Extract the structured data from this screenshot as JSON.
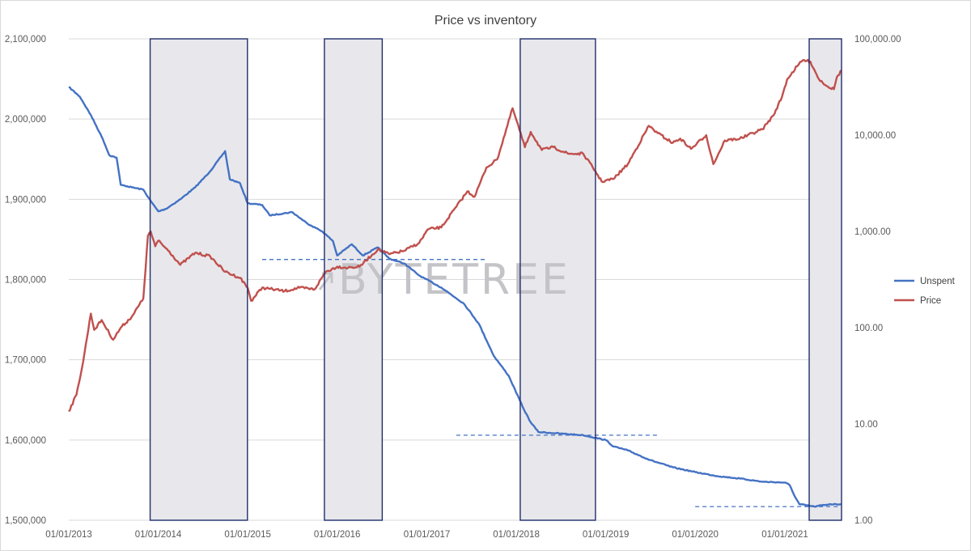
{
  "chart_data": {
    "type": "line",
    "title": "Price vs inventory",
    "x_range": [
      "2013-01-01",
      "2021-08-20"
    ],
    "x_ticks": [
      "01/01/2013",
      "01/01/2014",
      "01/01/2015",
      "01/01/2016",
      "01/01/2017",
      "01/01/2018",
      "01/01/2019",
      "01/01/2020",
      "01/01/2021"
    ],
    "y_left": {
      "min": 1500000,
      "max": 2100000,
      "ticks": [
        "1,500,000",
        "1,600,000",
        "1,700,000",
        "1,800,000",
        "1,900,000",
        "2,000,000",
        "2,100,000"
      ]
    },
    "y_right": {
      "scale": "log",
      "min": 1,
      "max": 100000,
      "ticks": [
        "1.00",
        "10.00",
        "100.00",
        "1,000.00",
        "10,000.00",
        "100,000.00"
      ]
    },
    "grid": "horizontal",
    "legend_position": "right",
    "watermark": "BYTETREE",
    "series": [
      {
        "name": "Unspent",
        "axis": "left",
        "color": "#4472c4",
        "points": [
          [
            "2013-01-01",
            2040000
          ],
          [
            "2013-02-15",
            2028000
          ],
          [
            "2013-04-01",
            2005000
          ],
          [
            "2013-05-20",
            1975000
          ],
          [
            "2013-06-15",
            1955000
          ],
          [
            "2013-07-15",
            1952000
          ],
          [
            "2013-08-01",
            1918000
          ],
          [
            "2013-09-15",
            1915000
          ],
          [
            "2013-11-01",
            1912000
          ],
          [
            "2013-12-01",
            1898000
          ],
          [
            "2014-01-01",
            1885000
          ],
          [
            "2014-02-01",
            1888000
          ],
          [
            "2014-04-01",
            1900000
          ],
          [
            "2014-06-01",
            1915000
          ],
          [
            "2014-08-01",
            1935000
          ],
          [
            "2014-10-01",
            1960000
          ],
          [
            "2014-10-20",
            1925000
          ],
          [
            "2014-12-01",
            1920000
          ],
          [
            "2015-01-01",
            1895000
          ],
          [
            "2015-03-01",
            1893000
          ],
          [
            "2015-04-01",
            1880000
          ],
          [
            "2015-07-01",
            1884000
          ],
          [
            "2015-09-01",
            1870000
          ],
          [
            "2015-11-01",
            1860000
          ],
          [
            "2015-12-15",
            1848000
          ],
          [
            "2016-01-01",
            1830000
          ],
          [
            "2016-03-01",
            1844000
          ],
          [
            "2016-04-15",
            1830000
          ],
          [
            "2016-06-15",
            1840000
          ],
          [
            "2016-08-01",
            1826000
          ],
          [
            "2016-10-01",
            1820000
          ],
          [
            "2016-12-01",
            1805000
          ],
          [
            "2017-03-01",
            1790000
          ],
          [
            "2017-06-01",
            1770000
          ],
          [
            "2017-08-01",
            1745000
          ],
          [
            "2017-10-01",
            1705000
          ],
          [
            "2017-12-01",
            1680000
          ],
          [
            "2018-02-01",
            1638000
          ],
          [
            "2018-03-01",
            1622000
          ],
          [
            "2018-04-01",
            1610000
          ],
          [
            "2018-07-01",
            1608000
          ],
          [
            "2018-10-01",
            1606000
          ],
          [
            "2019-01-01",
            1600000
          ],
          [
            "2019-02-01",
            1592000
          ],
          [
            "2019-04-01",
            1587000
          ],
          [
            "2019-07-01",
            1575000
          ],
          [
            "2019-10-01",
            1566000
          ],
          [
            "2020-01-01",
            1560000
          ],
          [
            "2020-04-01",
            1555000
          ],
          [
            "2020-07-01",
            1552000
          ],
          [
            "2020-10-01",
            1548000
          ],
          [
            "2021-01-01",
            1547000
          ],
          [
            "2021-01-20",
            1544000
          ],
          [
            "2021-02-10",
            1530000
          ],
          [
            "2021-03-01",
            1520000
          ],
          [
            "2021-05-01",
            1517000
          ],
          [
            "2021-07-01",
            1520000
          ],
          [
            "2021-08-20",
            1520000
          ]
        ]
      },
      {
        "name": "Price",
        "axis": "right",
        "color": "#c0504d",
        "points": [
          [
            "2013-01-01",
            13.5
          ],
          [
            "2013-02-01",
            20
          ],
          [
            "2013-03-01",
            45
          ],
          [
            "2013-04-01",
            140
          ],
          [
            "2013-04-15",
            95
          ],
          [
            "2013-05-15",
            120
          ],
          [
            "2013-07-01",
            75
          ],
          [
            "2013-08-01",
            100
          ],
          [
            "2013-09-15",
            130
          ],
          [
            "2013-11-01",
            200
          ],
          [
            "2013-11-20",
            900
          ],
          [
            "2013-12-01",
            1000
          ],
          [
            "2013-12-20",
            700
          ],
          [
            "2014-01-01",
            800
          ],
          [
            "2014-02-15",
            620
          ],
          [
            "2014-04-01",
            450
          ],
          [
            "2014-06-01",
            600
          ],
          [
            "2014-08-01",
            550
          ],
          [
            "2014-10-01",
            380
          ],
          [
            "2014-12-01",
            330
          ],
          [
            "2015-01-01",
            260
          ],
          [
            "2015-01-15",
            190
          ],
          [
            "2015-03-01",
            260
          ],
          [
            "2015-06-01",
            240
          ],
          [
            "2015-08-01",
            260
          ],
          [
            "2015-10-01",
            250
          ],
          [
            "2015-11-15",
            380
          ],
          [
            "2016-01-01",
            430
          ],
          [
            "2016-02-15",
            420
          ],
          [
            "2016-04-01",
            430
          ],
          [
            "2016-06-15",
            650
          ],
          [
            "2016-08-01",
            580
          ],
          [
            "2016-10-01",
            630
          ],
          [
            "2016-12-01",
            760
          ],
          [
            "2017-01-05",
            1050
          ],
          [
            "2017-03-01",
            1100
          ],
          [
            "2017-05-01",
            1800
          ],
          [
            "2017-06-15",
            2600
          ],
          [
            "2017-07-15",
            2300
          ],
          [
            "2017-09-01",
            4600
          ],
          [
            "2017-10-15",
            5600
          ],
          [
            "2017-12-17",
            19000
          ],
          [
            "2018-02-05",
            7500
          ],
          [
            "2018-03-01",
            10800
          ],
          [
            "2018-04-15",
            7000
          ],
          [
            "2018-06-01",
            7500
          ],
          [
            "2018-08-01",
            6400
          ],
          [
            "2018-10-01",
            6400
          ],
          [
            "2018-11-20",
            4200
          ],
          [
            "2018-12-15",
            3300
          ],
          [
            "2019-02-01",
            3500
          ],
          [
            "2019-04-01",
            5000
          ],
          [
            "2019-06-26",
            12500
          ],
          [
            "2019-08-01",
            10500
          ],
          [
            "2019-10-01",
            8300
          ],
          [
            "2019-11-01",
            9200
          ],
          [
            "2019-12-15",
            7200
          ],
          [
            "2020-02-15",
            10000
          ],
          [
            "2020-03-15",
            5000
          ],
          [
            "2020-05-01",
            8800
          ],
          [
            "2020-07-01",
            9200
          ],
          [
            "2020-10-01",
            11500
          ],
          [
            "2020-11-15",
            16000
          ],
          [
            "2020-12-20",
            25000
          ],
          [
            "2021-01-10",
            38000
          ],
          [
            "2021-02-20",
            52000
          ],
          [
            "2021-03-15",
            60000
          ],
          [
            "2021-04-15",
            58000
          ],
          [
            "2021-05-20",
            38000
          ],
          [
            "2021-06-25",
            32000
          ],
          [
            "2021-07-20",
            30000
          ],
          [
            "2021-08-01",
            40000
          ],
          [
            "2021-08-20",
            47000
          ]
        ]
      }
    ],
    "shaded_periods": [
      [
        "2013-11-29",
        "2014-12-31"
      ],
      [
        "2015-11-10",
        "2016-07-03"
      ],
      [
        "2018-01-17",
        "2018-11-20"
      ],
      [
        "2021-04-10",
        "2021-08-20"
      ]
    ],
    "reference_lines": [
      {
        "axis": "left",
        "value": 1825000,
        "from": "2015-03-01",
        "to": "2017-09-01"
      },
      {
        "axis": "left",
        "value": 1606000,
        "from": "2017-05-01",
        "to": "2019-08-01"
      },
      {
        "axis": "left",
        "value": 1517000,
        "from": "2020-01-01",
        "to": "2021-08-15"
      }
    ]
  }
}
